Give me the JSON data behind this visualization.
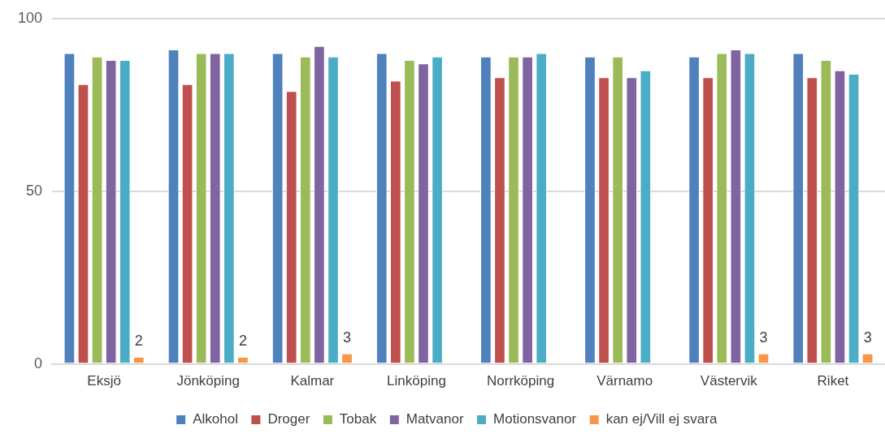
{
  "chart_data": {
    "type": "bar",
    "categories": [
      "Eksjö",
      "Jönköping",
      "Kalmar",
      "Linköping",
      "Norrköping",
      "Värnamo",
      "Västervik",
      "Riket"
    ],
    "series": [
      {
        "name": "Alkohol",
        "color": "#4f81bd",
        "values": [
          90,
          91,
          90,
          90,
          89,
          89,
          89,
          90
        ]
      },
      {
        "name": "Droger",
        "color": "#c0504d",
        "values": [
          81,
          81,
          79,
          82,
          83,
          83,
          83,
          83
        ]
      },
      {
        "name": "Tobak",
        "color": "#9bbb59",
        "values": [
          89,
          90,
          89,
          88,
          89,
          89,
          90,
          88
        ]
      },
      {
        "name": "Matvanor",
        "color": "#8064a2",
        "values": [
          88,
          90,
          92,
          87,
          89,
          83,
          91,
          85
        ]
      },
      {
        "name": "Motionsvanor",
        "color": "#4bacc6",
        "values": [
          88,
          90,
          89,
          89,
          90,
          85,
          90,
          84
        ]
      },
      {
        "name": "kan ej/Vill ej svara",
        "color": "#f79646",
        "values": [
          2,
          2,
          3,
          null,
          null,
          null,
          3,
          3
        ],
        "value_labels": [
          "2",
          "2",
          "3",
          null,
          null,
          null,
          "3",
          "3"
        ]
      }
    ],
    "ylim": [
      0,
      100
    ],
    "yticks": [
      0,
      50,
      100
    ],
    "grid": "y",
    "legend": "bottom"
  }
}
